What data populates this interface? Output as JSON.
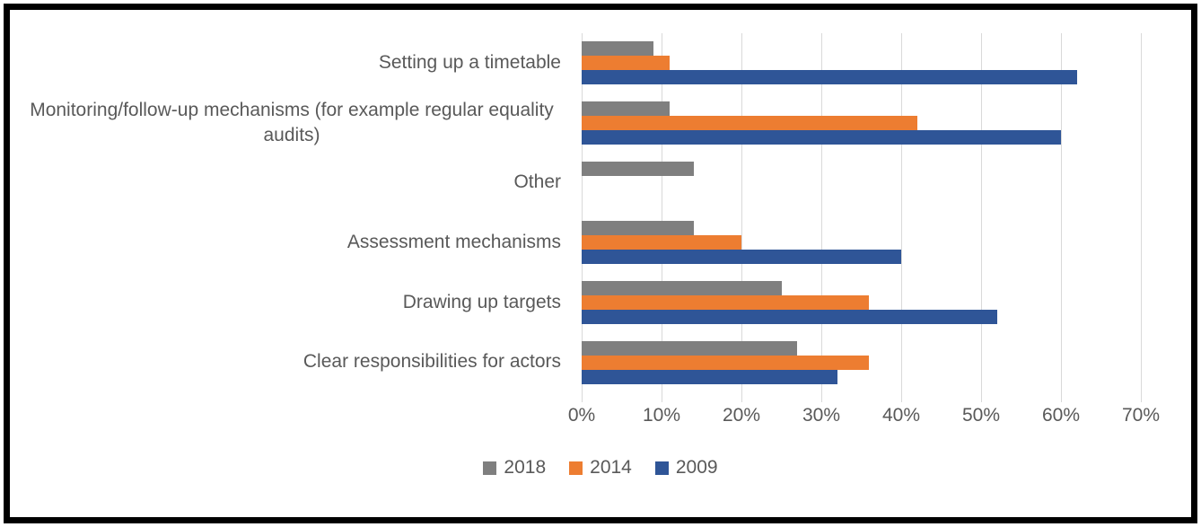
{
  "chart_data": {
    "type": "bar",
    "orientation": "horizontal",
    "title": "",
    "xlabel": "",
    "ylabel": "",
    "categories": [
      "Setting up a timetable",
      "Monitoring/follow-up mechanisms (for example regular equality audits)",
      "Other",
      "Assessment mechanisms",
      "Drawing up targets",
      "Clear responsibilities for actors"
    ],
    "series": [
      {
        "name": "2018",
        "color": "#7f7f7f",
        "values": [
          9,
          11,
          14,
          14,
          25,
          27
        ]
      },
      {
        "name": "2014",
        "color": "#ed7d31",
        "values": [
          11,
          42,
          0,
          20,
          36,
          36
        ]
      },
      {
        "name": "2009",
        "color": "#2f5597",
        "values": [
          62,
          60,
          0,
          40,
          52,
          32
        ]
      }
    ],
    "x_ticks": [
      "0%",
      "10%",
      "20%",
      "30%",
      "40%",
      "50%",
      "60%",
      "70%"
    ],
    "xlim": [
      0,
      70
    ],
    "grid": true,
    "gridline_color": "#d9d9d9",
    "text_color": "#595959",
    "legend_position": "bottom",
    "border_color": "#000000"
  }
}
